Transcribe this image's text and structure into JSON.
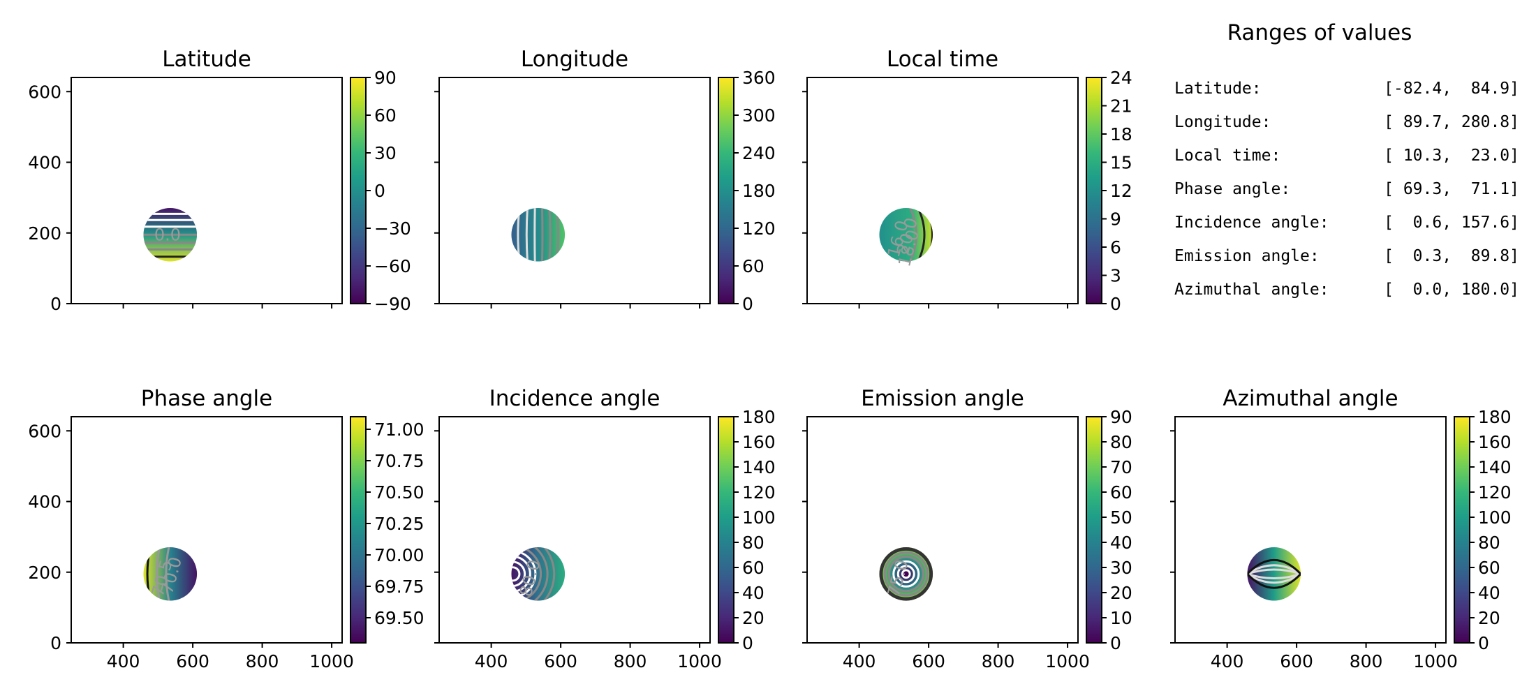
{
  "figure": {
    "colormap": [
      "#440154",
      "#482878",
      "#3e4989",
      "#31688e",
      "#26828e",
      "#1f9e89",
      "#35b779",
      "#6ece58",
      "#b5de2b",
      "#fde725"
    ]
  },
  "chart_data": [
    {
      "type": "heatmap",
      "title": "Latitude",
      "xlim": [
        250,
        1030
      ],
      "ylim": [
        0,
        640
      ],
      "xticks": [
        400,
        600,
        800,
        1000
      ],
      "yticks": [
        0,
        200,
        400,
        600
      ],
      "show_xticklabels": false,
      "show_yticklabels": true,
      "disk": {
        "center": [
          535,
          195
        ],
        "radius": 77
      },
      "field": "latitude",
      "colorbar": {
        "min": -90,
        "max": 90,
        "ticks": [
          -90,
          -60,
          -30,
          0,
          30,
          60,
          90
        ],
        "tick_labels": [
          "−90",
          "−60",
          "−30",
          "0",
          "30",
          "60",
          "90"
        ]
      },
      "contour_labels": [
        "0.0"
      ]
    },
    {
      "type": "heatmap",
      "title": "Longitude",
      "xlim": [
        250,
        1030
      ],
      "ylim": [
        0,
        640
      ],
      "xticks": [
        400,
        600,
        800,
        1000
      ],
      "yticks": [
        0,
        200,
        400,
        600
      ],
      "show_xticklabels": false,
      "show_yticklabels": false,
      "disk": {
        "center": [
          535,
          195
        ],
        "radius": 77
      },
      "field": "longitude",
      "colorbar": {
        "min": 0,
        "max": 360,
        "ticks": [
          0,
          60,
          120,
          180,
          240,
          300,
          360
        ],
        "tick_labels": [
          "0",
          "60",
          "120",
          "180",
          "240",
          "300",
          "360"
        ]
      },
      "contour_labels": []
    },
    {
      "type": "heatmap",
      "title": "Local time",
      "xlim": [
        250,
        1030
      ],
      "ylim": [
        0,
        640
      ],
      "xticks": [
        400,
        600,
        800,
        1000
      ],
      "yticks": [
        0,
        200,
        400,
        600
      ],
      "show_xticklabels": false,
      "show_yticklabels": false,
      "disk": {
        "center": [
          535,
          195
        ],
        "radius": 77
      },
      "field": "localtime",
      "colorbar": {
        "min": 0,
        "max": 24,
        "ticks": [
          0,
          3,
          6,
          9,
          12,
          15,
          18,
          21,
          24
        ],
        "tick_labels": [
          "0",
          "3",
          "6",
          "9",
          "12",
          "15",
          "18",
          "21",
          "24"
        ]
      },
      "contour_labels": [
        "16.0",
        "20.0",
        "18.0"
      ]
    },
    {
      "type": "heatmap",
      "title": "Phase angle",
      "xlim": [
        250,
        1030
      ],
      "ylim": [
        0,
        640
      ],
      "xticks": [
        400,
        600,
        800,
        1000
      ],
      "yticks": [
        0,
        200,
        400,
        600
      ],
      "show_xticklabels": true,
      "show_yticklabels": true,
      "disk": {
        "center": [
          535,
          195
        ],
        "radius": 77
      },
      "field": "phase",
      "colorbar": {
        "min": 69.3,
        "max": 71.1,
        "ticks": [
          69.5,
          69.75,
          70.0,
          70.25,
          70.5,
          70.75,
          71.0
        ],
        "tick_labels": [
          "69.50",
          "69.75",
          "70.00",
          "70.25",
          "70.50",
          "70.75",
          "71.00"
        ]
      },
      "contour_labels": [
        "70.5",
        "70.0"
      ]
    },
    {
      "type": "heatmap",
      "title": "Incidence angle",
      "xlim": [
        250,
        1030
      ],
      "ylim": [
        0,
        640
      ],
      "xticks": [
        400,
        600,
        800,
        1000
      ],
      "yticks": [
        0,
        200,
        400,
        600
      ],
      "show_xticklabels": true,
      "show_yticklabels": false,
      "disk": {
        "center": [
          535,
          195
        ],
        "radius": 77
      },
      "field": "incidence",
      "colorbar": {
        "min": 0,
        "max": 180,
        "ticks": [
          0,
          20,
          40,
          60,
          80,
          100,
          120,
          140,
          160,
          180
        ],
        "tick_labels": [
          "0",
          "20",
          "40",
          "60",
          "80",
          "100",
          "120",
          "140",
          "160",
          "180"
        ]
      },
      "contour_labels": [
        "80.0"
      ]
    },
    {
      "type": "heatmap",
      "title": "Emission angle",
      "xlim": [
        250,
        1030
      ],
      "ylim": [
        0,
        640
      ],
      "xticks": [
        400,
        600,
        800,
        1000
      ],
      "yticks": [
        0,
        200,
        400,
        600
      ],
      "show_xticklabels": true,
      "show_yticklabels": false,
      "disk": {
        "center": [
          535,
          195
        ],
        "radius": 77
      },
      "field": "emission",
      "colorbar": {
        "min": 0,
        "max": 90,
        "ticks": [
          0,
          10,
          20,
          30,
          40,
          50,
          60,
          70,
          80,
          90
        ],
        "tick_labels": [
          "0",
          "10",
          "20",
          "30",
          "40",
          "50",
          "60",
          "70",
          "80",
          "90"
        ]
      },
      "contour_labels": [
        "75.0"
      ]
    },
    {
      "type": "heatmap",
      "title": "Azimuthal angle",
      "xlim": [
        250,
        1030
      ],
      "ylim": [
        0,
        640
      ],
      "xticks": [
        400,
        600,
        800,
        1000
      ],
      "yticks": [
        0,
        200,
        400,
        600
      ],
      "show_xticklabels": true,
      "show_yticklabels": false,
      "disk": {
        "center": [
          535,
          195
        ],
        "radius": 77
      },
      "field": "azimuth",
      "colorbar": {
        "min": 0,
        "max": 180,
        "ticks": [
          0,
          20,
          40,
          60,
          80,
          100,
          120,
          140,
          160,
          180
        ],
        "tick_labels": [
          "0",
          "20",
          "40",
          "60",
          "80",
          "100",
          "120",
          "140",
          "160",
          "180"
        ]
      },
      "contour_labels": []
    },
    {
      "type": "table",
      "title": "Ranges of values",
      "rows": [
        {
          "label": "Latitude:",
          "range": "[-82.4,  84.9]"
        },
        {
          "label": "Longitude:",
          "range": "[ 89.7, 280.8]"
        },
        {
          "label": "Local time:",
          "range": "[ 10.3,  23.0]"
        },
        {
          "label": "Phase angle:",
          "range": "[ 69.3,  71.1]"
        },
        {
          "label": "Incidence angle:",
          "range": "[  0.6, 157.6]"
        },
        {
          "label": "Emission angle:",
          "range": "[  0.3,  89.8]"
        },
        {
          "label": "Azimuthal angle:",
          "range": "[  0.0, 180.0]"
        }
      ]
    }
  ]
}
